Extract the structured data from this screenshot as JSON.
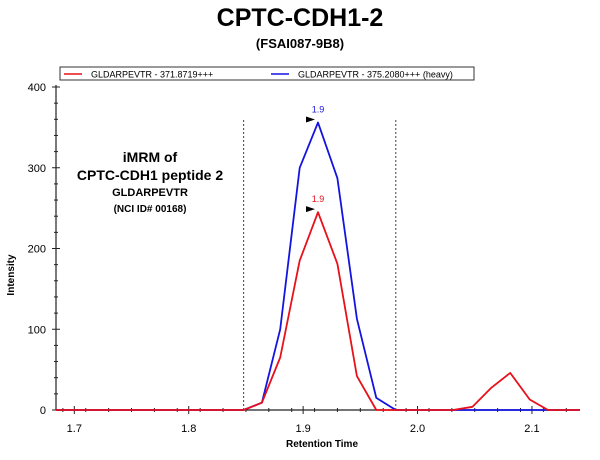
{
  "chart_data": {
    "type": "line",
    "title": "CPTC-CDH1-2",
    "subtitle": "(FSAI087-9B8)",
    "xlabel": "Retention Time",
    "ylabel": "Intensity",
    "xlim": [
      1.684,
      2.142
    ],
    "ylim": [
      0,
      400
    ],
    "xticks": [
      "1.7",
      "1.8",
      "1.9",
      "2.0",
      "2.1"
    ],
    "yticks": [
      "0",
      "100",
      "200",
      "300",
      "400"
    ],
    "grid": false,
    "legend_position": "top",
    "boundaries": [
      1.848,
      1.981
    ],
    "annotation": [
      "iMRM of",
      "CPTC-CDH1 peptide 2",
      "GLDARPEVTR",
      "(NCI ID# 00168)"
    ],
    "series": [
      {
        "name": "GLDARPEVTR - 371.8719+++",
        "color": "#e8101a",
        "peak_label": "1.9",
        "peak_x": 1.913,
        "x": [
          1.684,
          1.848,
          1.864,
          1.88,
          1.897,
          1.913,
          1.93,
          1.947,
          1.964,
          1.981,
          2.031,
          2.048,
          2.064,
          2.081,
          2.098,
          2.114,
          2.142
        ],
        "y": [
          0,
          0,
          9,
          65,
          185,
          245,
          181,
          42,
          0,
          0,
          0,
          4,
          27,
          46,
          13,
          0,
          0
        ]
      },
      {
        "name": "GLDARPEVTR - 375.2080+++ (heavy)",
        "color": "#1414e0",
        "peak_label": "1.9",
        "peak_x": 1.913,
        "x": [
          1.684,
          1.848,
          1.864,
          1.88,
          1.897,
          1.913,
          1.93,
          1.947,
          1.964,
          1.981,
          2.142
        ],
        "y": [
          0,
          0,
          9,
          100,
          300,
          356,
          287,
          113,
          15,
          0,
          0
        ]
      }
    ]
  }
}
